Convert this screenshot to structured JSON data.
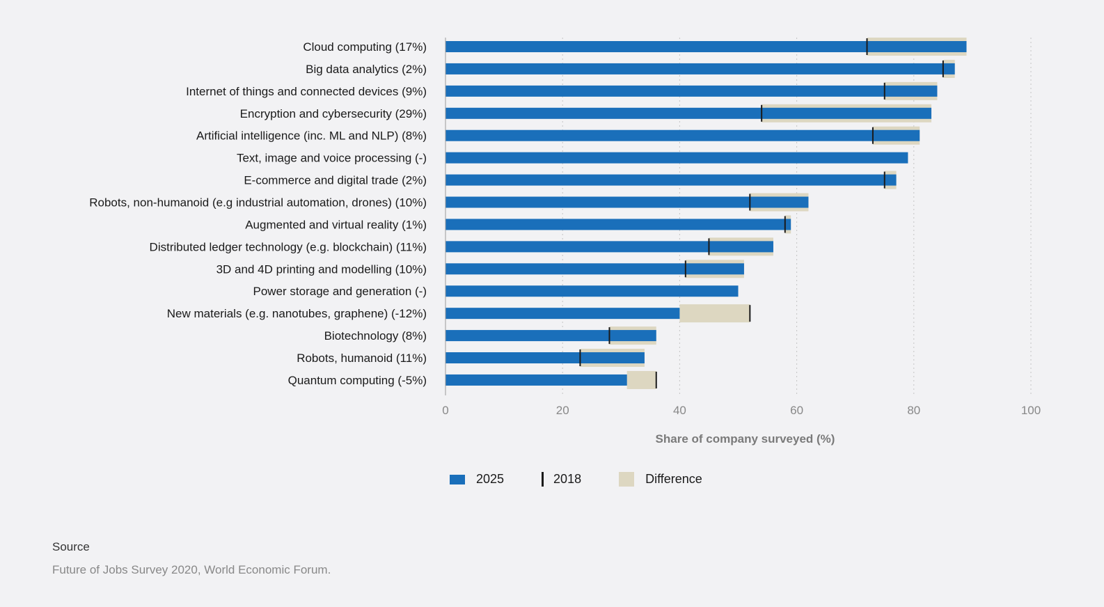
{
  "chart_data": {
    "type": "bar",
    "orientation": "horizontal",
    "categories": [
      "Cloud computing (17%)",
      "Big data analytics (2%)",
      "Internet of things and connected devices (9%)",
      "Encryption and cybersecurity (29%)",
      "Artificial intelligence (inc. ML and NLP) (8%)",
      "Text, image and voice processing (-)",
      "E-commerce and digital trade (2%)",
      "Robots, non-humanoid (e.g industrial automation, drones) (10%)",
      "Augmented and virtual reality (1%)",
      "Distributed ledger technology (e.g. blockchain) (11%)",
      "3D and 4D printing and modelling (10%)",
      "Power storage and generation (-)",
      "New materials (e.g. nanotubes, graphene) (-12%)",
      "Biotechnology (8%)",
      "Robots, humanoid (11%)",
      "Quantum computing (-5%)"
    ],
    "series": [
      {
        "name": "2025",
        "values": [
          89,
          87,
          84,
          83,
          81,
          79,
          77,
          62,
          59,
          56,
          51,
          50,
          40,
          36,
          34,
          31
        ]
      },
      {
        "name": "2018",
        "values": [
          72,
          85,
          75,
          54,
          73,
          null,
          75,
          52,
          58,
          45,
          41,
          null,
          52,
          28,
          23,
          36
        ]
      }
    ],
    "difference_label": "Difference",
    "xlabel": "Share of company surveyed (%)",
    "ylabel": "",
    "xlim": [
      0,
      100
    ],
    "xticks": [
      0,
      20,
      40,
      60,
      80,
      100
    ],
    "grid": true,
    "legend_position": "bottom",
    "colors": {
      "bar_2025": "#1a6fba",
      "marker_2018": "#1a1a1a",
      "difference": "#ddd7c1"
    }
  },
  "legend": {
    "item_2025": "2025",
    "item_2018": "2018",
    "item_diff": "Difference"
  },
  "source": {
    "title": "Source",
    "text": "Future of Jobs Survey 2020, World Economic Forum."
  }
}
